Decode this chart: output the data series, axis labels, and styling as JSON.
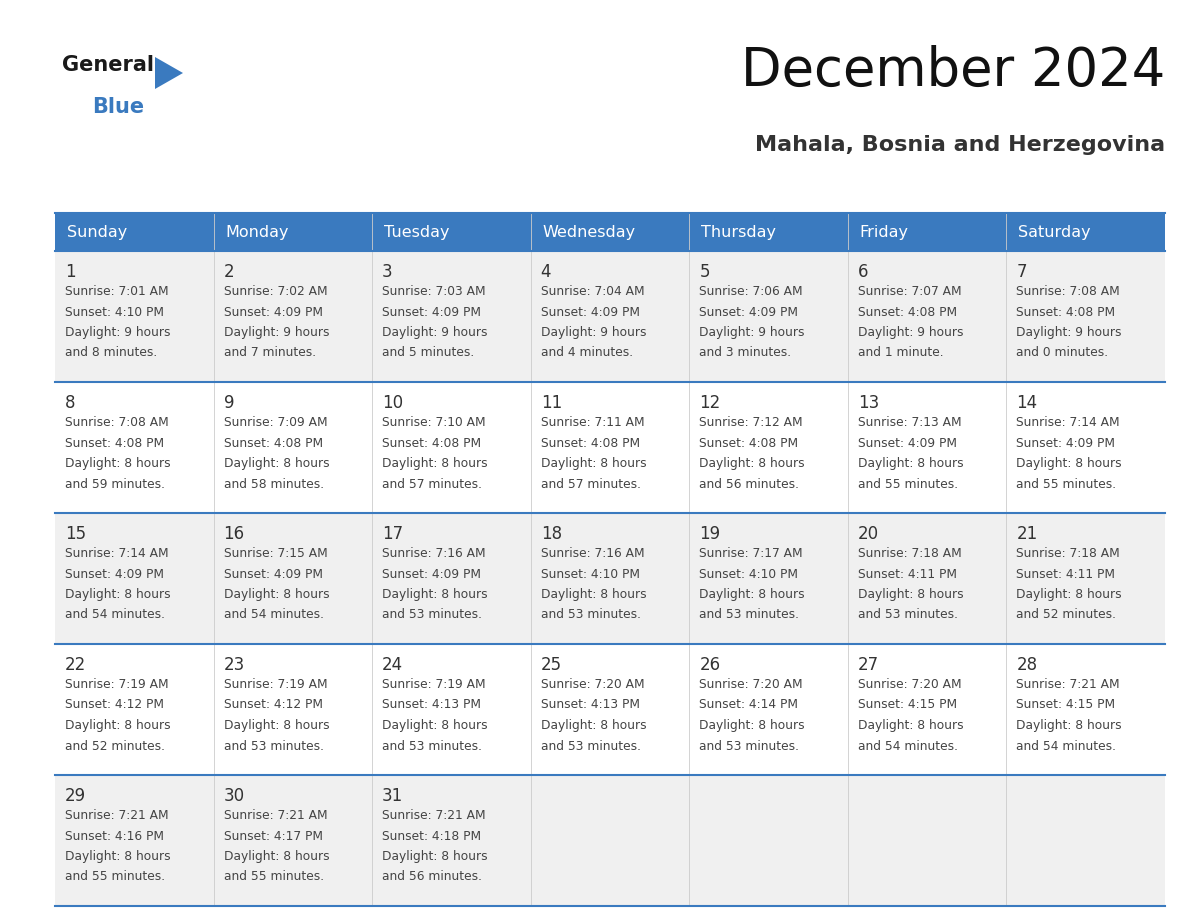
{
  "title": "December 2024",
  "subtitle": "Mahala, Bosnia and Herzegovina",
  "header_color": "#3a7abf",
  "header_text_color": "#ffffff",
  "day_names": [
    "Sunday",
    "Monday",
    "Tuesday",
    "Wednesday",
    "Thursday",
    "Friday",
    "Saturday"
  ],
  "bg_color": "#ffffff",
  "cell_bg_odd": "#f0f0f0",
  "cell_bg_even": "#ffffff",
  "row_line_color": "#3a7abf",
  "text_color": "#444444",
  "date_color": "#333333",
  "days": [
    {
      "date": 1,
      "col": 0,
      "row": 0,
      "sunrise": "7:01 AM",
      "sunset": "4:10 PM",
      "daylight_h": "9 hours",
      "daylight_m": "and 8 minutes."
    },
    {
      "date": 2,
      "col": 1,
      "row": 0,
      "sunrise": "7:02 AM",
      "sunset": "4:09 PM",
      "daylight_h": "9 hours",
      "daylight_m": "and 7 minutes."
    },
    {
      "date": 3,
      "col": 2,
      "row": 0,
      "sunrise": "7:03 AM",
      "sunset": "4:09 PM",
      "daylight_h": "9 hours",
      "daylight_m": "and 5 minutes."
    },
    {
      "date": 4,
      "col": 3,
      "row": 0,
      "sunrise": "7:04 AM",
      "sunset": "4:09 PM",
      "daylight_h": "9 hours",
      "daylight_m": "and 4 minutes."
    },
    {
      "date": 5,
      "col": 4,
      "row": 0,
      "sunrise": "7:06 AM",
      "sunset": "4:09 PM",
      "daylight_h": "9 hours",
      "daylight_m": "and 3 minutes."
    },
    {
      "date": 6,
      "col": 5,
      "row": 0,
      "sunrise": "7:07 AM",
      "sunset": "4:08 PM",
      "daylight_h": "9 hours",
      "daylight_m": "and 1 minute."
    },
    {
      "date": 7,
      "col": 6,
      "row": 0,
      "sunrise": "7:08 AM",
      "sunset": "4:08 PM",
      "daylight_h": "9 hours",
      "daylight_m": "and 0 minutes."
    },
    {
      "date": 8,
      "col": 0,
      "row": 1,
      "sunrise": "7:08 AM",
      "sunset": "4:08 PM",
      "daylight_h": "8 hours",
      "daylight_m": "and 59 minutes."
    },
    {
      "date": 9,
      "col": 1,
      "row": 1,
      "sunrise": "7:09 AM",
      "sunset": "4:08 PM",
      "daylight_h": "8 hours",
      "daylight_m": "and 58 minutes."
    },
    {
      "date": 10,
      "col": 2,
      "row": 1,
      "sunrise": "7:10 AM",
      "sunset": "4:08 PM",
      "daylight_h": "8 hours",
      "daylight_m": "and 57 minutes."
    },
    {
      "date": 11,
      "col": 3,
      "row": 1,
      "sunrise": "7:11 AM",
      "sunset": "4:08 PM",
      "daylight_h": "8 hours",
      "daylight_m": "and 57 minutes."
    },
    {
      "date": 12,
      "col": 4,
      "row": 1,
      "sunrise": "7:12 AM",
      "sunset": "4:08 PM",
      "daylight_h": "8 hours",
      "daylight_m": "and 56 minutes."
    },
    {
      "date": 13,
      "col": 5,
      "row": 1,
      "sunrise": "7:13 AM",
      "sunset": "4:09 PM",
      "daylight_h": "8 hours",
      "daylight_m": "and 55 minutes."
    },
    {
      "date": 14,
      "col": 6,
      "row": 1,
      "sunrise": "7:14 AM",
      "sunset": "4:09 PM",
      "daylight_h": "8 hours",
      "daylight_m": "and 55 minutes."
    },
    {
      "date": 15,
      "col": 0,
      "row": 2,
      "sunrise": "7:14 AM",
      "sunset": "4:09 PM",
      "daylight_h": "8 hours",
      "daylight_m": "and 54 minutes."
    },
    {
      "date": 16,
      "col": 1,
      "row": 2,
      "sunrise": "7:15 AM",
      "sunset": "4:09 PM",
      "daylight_h": "8 hours",
      "daylight_m": "and 54 minutes."
    },
    {
      "date": 17,
      "col": 2,
      "row": 2,
      "sunrise": "7:16 AM",
      "sunset": "4:09 PM",
      "daylight_h": "8 hours",
      "daylight_m": "and 53 minutes."
    },
    {
      "date": 18,
      "col": 3,
      "row": 2,
      "sunrise": "7:16 AM",
      "sunset": "4:10 PM",
      "daylight_h": "8 hours",
      "daylight_m": "and 53 minutes."
    },
    {
      "date": 19,
      "col": 4,
      "row": 2,
      "sunrise": "7:17 AM",
      "sunset": "4:10 PM",
      "daylight_h": "8 hours",
      "daylight_m": "and 53 minutes."
    },
    {
      "date": 20,
      "col": 5,
      "row": 2,
      "sunrise": "7:18 AM",
      "sunset": "4:11 PM",
      "daylight_h": "8 hours",
      "daylight_m": "and 53 minutes."
    },
    {
      "date": 21,
      "col": 6,
      "row": 2,
      "sunrise": "7:18 AM",
      "sunset": "4:11 PM",
      "daylight_h": "8 hours",
      "daylight_m": "and 52 minutes."
    },
    {
      "date": 22,
      "col": 0,
      "row": 3,
      "sunrise": "7:19 AM",
      "sunset": "4:12 PM",
      "daylight_h": "8 hours",
      "daylight_m": "and 52 minutes."
    },
    {
      "date": 23,
      "col": 1,
      "row": 3,
      "sunrise": "7:19 AM",
      "sunset": "4:12 PM",
      "daylight_h": "8 hours",
      "daylight_m": "and 53 minutes."
    },
    {
      "date": 24,
      "col": 2,
      "row": 3,
      "sunrise": "7:19 AM",
      "sunset": "4:13 PM",
      "daylight_h": "8 hours",
      "daylight_m": "and 53 minutes."
    },
    {
      "date": 25,
      "col": 3,
      "row": 3,
      "sunrise": "7:20 AM",
      "sunset": "4:13 PM",
      "daylight_h": "8 hours",
      "daylight_m": "and 53 minutes."
    },
    {
      "date": 26,
      "col": 4,
      "row": 3,
      "sunrise": "7:20 AM",
      "sunset": "4:14 PM",
      "daylight_h": "8 hours",
      "daylight_m": "and 53 minutes."
    },
    {
      "date": 27,
      "col": 5,
      "row": 3,
      "sunrise": "7:20 AM",
      "sunset": "4:15 PM",
      "daylight_h": "8 hours",
      "daylight_m": "and 54 minutes."
    },
    {
      "date": 28,
      "col": 6,
      "row": 3,
      "sunrise": "7:21 AM",
      "sunset": "4:15 PM",
      "daylight_h": "8 hours",
      "daylight_m": "and 54 minutes."
    },
    {
      "date": 29,
      "col": 0,
      "row": 4,
      "sunrise": "7:21 AM",
      "sunset": "4:16 PM",
      "daylight_h": "8 hours",
      "daylight_m": "and 55 minutes."
    },
    {
      "date": 30,
      "col": 1,
      "row": 4,
      "sunrise": "7:21 AM",
      "sunset": "4:17 PM",
      "daylight_h": "8 hours",
      "daylight_m": "and 55 minutes."
    },
    {
      "date": 31,
      "col": 2,
      "row": 4,
      "sunrise": "7:21 AM",
      "sunset": "4:18 PM",
      "daylight_h": "8 hours",
      "daylight_m": "and 56 minutes."
    }
  ]
}
